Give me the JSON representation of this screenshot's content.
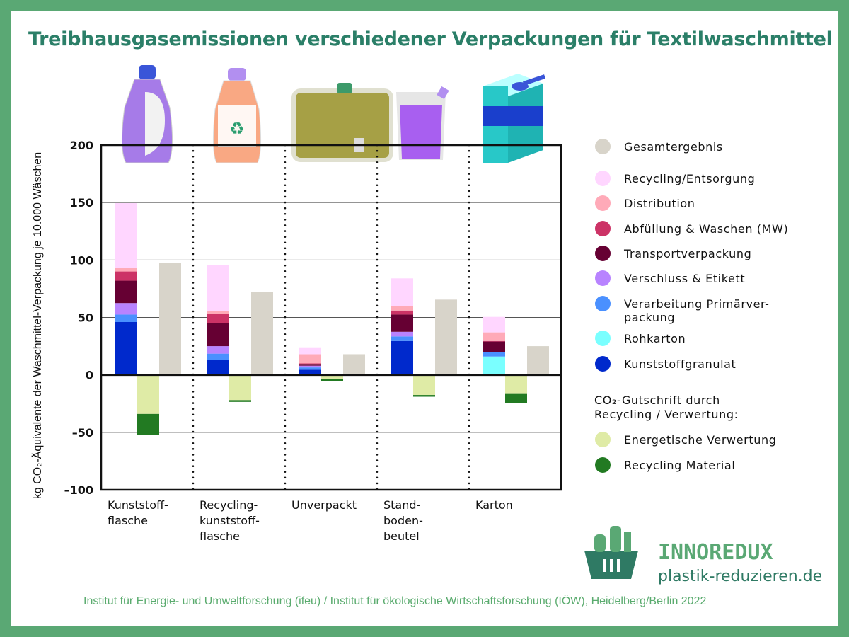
{
  "title": "Treibhausgasemissionen verschiedener Verpackungen für Textilwaschmittel",
  "footer": "Institut für Energie- und Umweltforschung (ifeu) / Institut für ökologische Wirtschaftsforschung (IÖW), Heidelberg/Berlin 2022",
  "logo": {
    "brand": "INNOREDUX",
    "url": "plastik-reduzieren.de"
  },
  "chart_data": {
    "type": "bar",
    "title": "Treibhausgasemissionen verschiedener Verpackungen für Textilwaschmittel",
    "ylabel": "kg CO₂-Äquivalente der Waschmittel-Verpackung je 10.000 Wäschen",
    "xlabel": "",
    "ylim": [
      -100,
      200
    ],
    "yticks": [
      {
        "v": 200,
        "label": "200"
      },
      {
        "v": 150,
        "label": "150"
      },
      {
        "v": 100,
        "label": "100"
      },
      {
        "v": 50,
        "label": "50"
      },
      {
        "v": 0,
        "label": "0"
      },
      {
        "v": -50,
        "label": "–50"
      },
      {
        "v": -100,
        "label": "–100"
      }
    ],
    "grid": true,
    "legend_position": "right",
    "categories": [
      {
        "lines": [
          "Kunststoff-",
          "flasche"
        ]
      },
      {
        "lines": [
          "Recycling-",
          "kunststoff-",
          "flasche"
        ]
      },
      {
        "lines": [
          "Unverpackt"
        ]
      },
      {
        "lines": [
          "Stand-",
          "boden-",
          "beutel"
        ]
      },
      {
        "lines": [
          "Karton"
        ]
      }
    ],
    "stack_series": [
      {
        "name": "Kunststoffgranulat",
        "color": "#0029cc",
        "values": [
          46,
          13,
          4.5,
          29.5,
          0
        ]
      },
      {
        "name": "Rohkarton",
        "color": "#7affff",
        "values": [
          0,
          0,
          0,
          0,
          16
        ]
      },
      {
        "name": "Verarbeitung Primärverpackung",
        "color": "#4a90ff",
        "values": [
          6.5,
          5.5,
          2,
          4,
          4
        ]
      },
      {
        "name": "Verschluss & Etikett",
        "color": "#b883ff",
        "values": [
          10,
          6.5,
          1.5,
          4,
          0
        ]
      },
      {
        "name": "Transportverpackung",
        "color": "#660033",
        "values": [
          19.5,
          20,
          1.5,
          15,
          9
        ]
      },
      {
        "name": "Abfüllung & Waschen (MW)",
        "color": "#cc3366",
        "values": [
          8,
          8,
          0.5,
          3.5,
          0.5
        ]
      },
      {
        "name": "Distribution",
        "color": "#ffaab8",
        "values": [
          3,
          2.5,
          8,
          4,
          7.5
        ]
      },
      {
        "name": "Recycling/Entsorgung",
        "color": "#ffd6ff",
        "values": [
          56.5,
          40,
          6,
          24,
          13.5
        ]
      }
    ],
    "credit_series": [
      {
        "name": "Energetische Verwertung",
        "color": "#dfeba6",
        "values": [
          -34,
          -22,
          -3.5,
          -17.5,
          -16
        ]
      },
      {
        "name": "Recycling Material",
        "color": "#227a22",
        "values": [
          -18,
          -1.5,
          -2,
          -1.5,
          -8.5
        ]
      }
    ],
    "total_series": {
      "name": "Gesamtergebnis",
      "color": "#d8d4ca",
      "values": [
        97.5,
        72,
        18,
        65.5,
        25
      ]
    },
    "legend": [
      {
        "label": "Gesamtergebnis",
        "color": "#d8d4ca"
      },
      {
        "label": "Recycling/Entsorgung",
        "color": "#ffd6ff"
      },
      {
        "label": "Distribution",
        "color": "#ffaab8"
      },
      {
        "label": "Abfüllung & Waschen (MW)",
        "color": "#cc3366"
      },
      {
        "label": "Transportverpackung",
        "color": "#660033"
      },
      {
        "label": "Verschluss & Etikett",
        "color": "#b883ff"
      },
      {
        "label": "Verarbeitung Primärver-",
        "label2": "packung",
        "color": "#4a90ff"
      },
      {
        "label": "Rohkarton",
        "color": "#7affff"
      },
      {
        "label": "Kunststoffgranulat",
        "color": "#0029cc"
      },
      {
        "heading": "CO₂-Gutschrift durch",
        "heading2": "Recycling / Verwertung:"
      },
      {
        "label": "Energetische Verwertung",
        "color": "#dfeba6"
      },
      {
        "label": "Recycling Material",
        "color": "#227a22"
      }
    ]
  }
}
